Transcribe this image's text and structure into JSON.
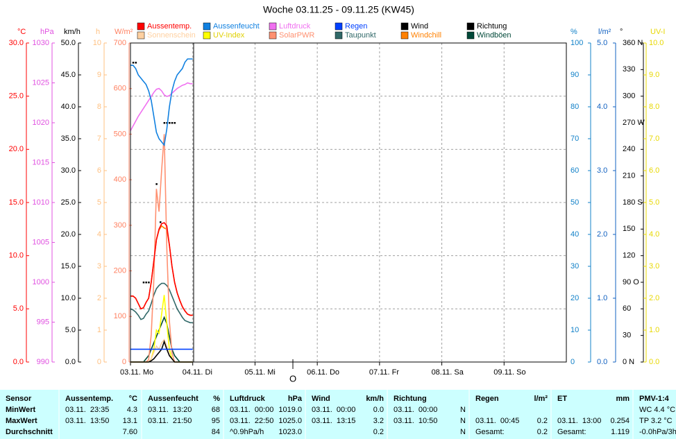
{
  "chart_data": {
    "type": "line",
    "title": "Woche 03.11.25 - 09.11.25 (KW45)",
    "xlim": [
      0,
      168
    ],
    "xticks": [
      {
        "value": 0,
        "label": "03.11. Mo"
      },
      {
        "value": 24,
        "label": "04.11. Di"
      },
      {
        "value": 48,
        "label": "05.11. Mi"
      },
      {
        "value": 72,
        "label": "06.11. Do"
      },
      {
        "value": 96,
        "label": "07.11. Fr"
      },
      {
        "value": 120,
        "label": "08.11. Sa"
      },
      {
        "value": 144,
        "label": "09.11. So"
      }
    ],
    "grid": true,
    "annotation": {
      "text": "O",
      "x": 62.6
    },
    "axes": [
      {
        "label": "°C",
        "color": "#ff0000",
        "side": "left",
        "ylim": [
          0,
          30
        ],
        "yticks": [
          {
            "value": 0,
            "label": "0.0"
          },
          {
            "value": 5,
            "label": "5.0"
          },
          {
            "value": 10,
            "label": "10.0"
          },
          {
            "value": 15,
            "label": "15.0"
          },
          {
            "value": 20,
            "label": "20.0"
          },
          {
            "value": 25,
            "label": "25.0"
          },
          {
            "value": 30,
            "label": "30.0"
          }
        ]
      },
      {
        "label": "hPa",
        "color": "#e050e0",
        "side": "left",
        "ylim": [
          990,
          1030
        ],
        "yticks": [
          990,
          995,
          1000,
          1005,
          1010,
          1015,
          1020,
          1025,
          1030
        ]
      },
      {
        "label": "km/h",
        "color": "#000000",
        "side": "left",
        "ylim": [
          0,
          50
        ],
        "yticks": [
          {
            "value": 0,
            "label": "0.0"
          },
          {
            "value": 5,
            "label": "5.0"
          },
          {
            "value": 10,
            "label": "10.0"
          },
          {
            "value": 15,
            "label": "15.0"
          },
          {
            "value": 20,
            "label": "20.0"
          },
          {
            "value": 25,
            "label": "25.0"
          },
          {
            "value": 30,
            "label": "30.0"
          },
          {
            "value": 35,
            "label": "35.0"
          },
          {
            "value": 40,
            "label": "40.0"
          },
          {
            "value": 45,
            "label": "45.0"
          },
          {
            "value": 50,
            "label": "50.0"
          }
        ]
      },
      {
        "label": "h",
        "color": "#ffc080",
        "side": "left",
        "ylim": [
          0,
          10
        ],
        "yticks": [
          0,
          1,
          2,
          3,
          4,
          5,
          6,
          7,
          8,
          9,
          10
        ]
      },
      {
        "label": "W/m²",
        "color": "#ff8060",
        "side": "left",
        "ylim": [
          0,
          700
        ],
        "yticks": [
          0,
          100,
          200,
          300,
          400,
          500,
          600,
          700
        ]
      },
      {
        "label": "%",
        "color": "#1080c8",
        "side": "right",
        "ylim": [
          0,
          100
        ],
        "yticks": [
          0,
          10,
          20,
          30,
          40,
          50,
          60,
          70,
          80,
          90,
          100
        ]
      },
      {
        "label": "l/m²",
        "color": "#1060c0",
        "side": "right",
        "ylim": [
          0,
          5
        ],
        "yticks": [
          {
            "value": 0,
            "label": "0.0"
          },
          {
            "value": 1,
            "label": "1.0"
          },
          {
            "value": 2,
            "label": "2.0"
          },
          {
            "value": 3,
            "label": "3.0"
          },
          {
            "value": 4,
            "label": "4.0"
          },
          {
            "value": 5,
            "label": "5.0"
          }
        ]
      },
      {
        "label": "°",
        "color": "#000000",
        "side": "right",
        "ylim": [
          0,
          360
        ],
        "yticks": [
          {
            "value": 0,
            "label": "0 N"
          },
          30,
          60,
          {
            "value": 90,
            "label": "90 O"
          },
          120,
          150,
          {
            "value": 180,
            "label": "180 S"
          },
          210,
          240,
          {
            "value": 270,
            "label": "270 W"
          },
          300,
          330,
          {
            "value": 360,
            "label": "360 N"
          }
        ]
      },
      {
        "label": "UV-I",
        "color": "#e8d800",
        "side": "right",
        "ylim": [
          0,
          10
        ],
        "yticks": [
          {
            "value": 0,
            "label": "0.0"
          },
          {
            "value": 1,
            "label": "1.0"
          },
          {
            "value": 2,
            "label": "2.0"
          },
          {
            "value": 3,
            "label": "3.0"
          },
          {
            "value": 4,
            "label": "4.0"
          },
          {
            "value": 5,
            "label": "5.0"
          },
          {
            "value": 6,
            "label": "6.0"
          },
          {
            "value": 7,
            "label": "7.0"
          },
          {
            "value": 8,
            "label": "8.0"
          },
          {
            "value": 9,
            "label": "9.0"
          },
          {
            "value": 10,
            "label": "10.0"
          }
        ]
      }
    ],
    "x": [
      0,
      1,
      2,
      3,
      4,
      5,
      6,
      7,
      8,
      9,
      10,
      11,
      12,
      13,
      14,
      15,
      16,
      17,
      18,
      19,
      20,
      21,
      22,
      23,
      24
    ],
    "series": [
      {
        "name": "Aussentemp.",
        "color": "#ff0000",
        "axis": 0,
        "values": [
          6.2,
          6.2,
          6.0,
          5.5,
          5.0,
          5.1,
          5.6,
          6.0,
          7.5,
          9.5,
          11.5,
          12.5,
          13.0,
          13.1,
          12.8,
          11.0,
          9.0,
          7.5,
          6.5,
          5.8,
          5.2,
          4.8,
          4.5,
          4.4,
          4.4
        ]
      },
      {
        "name": "Aussenfeucht",
        "color": "#1080e0",
        "axis": 5,
        "values": [
          93,
          93,
          92,
          90,
          89,
          88,
          87,
          85,
          82,
          77,
          72,
          70,
          69,
          68,
          73,
          80,
          85,
          88,
          90,
          91,
          92,
          94,
          95,
          95,
          95
        ]
      },
      {
        "name": "Luftdruck",
        "color": "#f070f0",
        "axis": 1,
        "values": [
          1019.0,
          1019.6,
          1020.2,
          1020.8,
          1021.3,
          1021.8,
          1022.3,
          1022.8,
          1023.3,
          1023.8,
          1024.2,
          1024.3,
          1024.0,
          1023.5,
          1023.3,
          1023.4,
          1023.7,
          1024.0,
          1024.3,
          1024.5,
          1024.7,
          1024.8,
          1025.0,
          1024.9,
          1024.9
        ]
      },
      {
        "name": "Regen",
        "color": "#0040ff",
        "axis": 6,
        "values": [
          0.2,
          0.2,
          0.2,
          0.2,
          0.2,
          0.2,
          0.2,
          0.2,
          0.2,
          0.2,
          0.2,
          0.2,
          0.2,
          0.2,
          0.2,
          0.2,
          0.2,
          0.2,
          0.2,
          0.2,
          0.2,
          0.2,
          0.2,
          0.2,
          0.2
        ]
      },
      {
        "name": "Wind",
        "color": "#000000",
        "axis": 2,
        "values": [
          0,
          0,
          0,
          0,
          0,
          0,
          0,
          0,
          0.2,
          0.5,
          1.0,
          1.5,
          2.0,
          3.2,
          2.0,
          1.0,
          0.5,
          0,
          0,
          0,
          0,
          0,
          0,
          0,
          0
        ]
      },
      {
        "name": "Richtung",
        "color": "#000000",
        "axis": 7,
        "type": "scatter",
        "x": [
          1,
          2,
          5,
          6,
          7,
          10,
          11.5,
          13,
          14,
          15,
          16,
          17
        ],
        "values": [
          338,
          338,
          90,
          90,
          90,
          201,
          158,
          270,
          270,
          270,
          270,
          270
        ]
      },
      {
        "name": "Sonnenschein",
        "color": "#ffd0a0",
        "axis": 3,
        "values": [
          0,
          0,
          0,
          0,
          0,
          0,
          0,
          0,
          0.1,
          0.3,
          0.5,
          0.4,
          0.6,
          0.7,
          0.5,
          0.2,
          0.1,
          0,
          0,
          0,
          0,
          0,
          0,
          0,
          0
        ]
      },
      {
        "name": "UV-Index",
        "color": "#ffff00",
        "axis": 8,
        "values": [
          0,
          0,
          0,
          0,
          0,
          0,
          0,
          0,
          0.1,
          0.4,
          1.0,
          0.9,
          1.5,
          2.1,
          1.2,
          0.4,
          0.1,
          0,
          0,
          0,
          0,
          0,
          0,
          0,
          0
        ]
      },
      {
        "name": "SolarPWR",
        "color": "#ff9070",
        "axis": 4,
        "values": [
          0,
          0,
          0,
          0,
          0,
          0,
          0,
          5,
          60,
          180,
          380,
          330,
          420,
          500,
          250,
          90,
          20,
          0,
          0,
          0,
          0,
          0,
          0,
          0,
          0
        ]
      },
      {
        "name": "Taupunkt",
        "color": "#306868",
        "axis": 0,
        "values": [
          5.0,
          4.9,
          4.7,
          4.4,
          4.0,
          4.1,
          4.5,
          4.8,
          5.5,
          6.3,
          6.9,
          7.2,
          7.4,
          7.4,
          7.2,
          6.8,
          6.2,
          5.6,
          5.0,
          4.6,
          4.2,
          3.9,
          3.8,
          3.7,
          3.7
        ]
      },
      {
        "name": "Windchill",
        "color": "#ff8000",
        "axis": 0,
        "values": [
          6.2,
          6.2,
          6.0,
          5.5,
          5.0,
          5.1,
          5.6,
          6.0,
          7.5,
          9.5,
          11.5,
          12.4,
          12.8,
          12.6,
          12.5,
          11.0,
          9.0,
          7.5,
          6.5,
          5.8,
          5.2,
          4.8,
          4.5,
          4.4,
          4.4
        ]
      },
      {
        "name": "Windböen",
        "color": "#004838",
        "axis": 2,
        "values": [
          0,
          0,
          0,
          0,
          0,
          0,
          0.5,
          1,
          2,
          3,
          4,
          5,
          6,
          7,
          6,
          4,
          2,
          1,
          0.5,
          0,
          0,
          0,
          0,
          0,
          0
        ]
      }
    ]
  },
  "table": {
    "row_labels": [
      "Sensor",
      "MinWert",
      "MaxWert",
      "Durchschnitt"
    ],
    "groups": [
      {
        "title": "Aussentemp.",
        "unit": "°C",
        "rows": [
          {
            "time": "03.11.  23:35",
            "value": "4.3"
          },
          {
            "time": "03.11.  13:50",
            "value": "13.1"
          },
          {
            "value": "7.60"
          }
        ]
      },
      {
        "title": "Aussenfeucht",
        "unit": "%",
        "rows": [
          {
            "time": "03.11.  13:20",
            "value": "68"
          },
          {
            "time": "03.11.  21:50",
            "value": "95"
          },
          {
            "value": "84"
          }
        ]
      },
      {
        "title": "Luftdruck",
        "unit": "hPa",
        "rows": [
          {
            "time": "03.11.  00:00",
            "value": "1019.0"
          },
          {
            "time": "03.11.  22:50",
            "value": "1025.0"
          },
          {
            "time": "^0.9hPa/h",
            "value": "1023.0"
          }
        ]
      },
      {
        "title": "Wind",
        "unit": "km/h",
        "rows": [
          {
            "time": "03.11.  00:00",
            "value": "0.0"
          },
          {
            "time": "03.11.  13:15",
            "value": "3.2"
          },
          {
            "value": "0.2"
          }
        ]
      },
      {
        "title": "Richtung",
        "rows": [
          {
            "time": "03.11.  00:00",
            "value": "N"
          },
          {
            "time": "03.11.  10:50",
            "value": "N"
          },
          {
            "value": "N"
          }
        ]
      },
      {
        "title": "Regen",
        "unit": "l/m²",
        "rows": [
          null,
          {
            "time": "03.11.  00:45",
            "value": "0.2"
          },
          {
            "time": "Gesamt:",
            "value": "0.2"
          }
        ]
      },
      {
        "title": "ET",
        "unit": "mm",
        "rows": [
          null,
          {
            "time": "03.11.  13:00",
            "value": "0.254"
          },
          {
            "time": "Gesamt:",
            "value": "1.119"
          }
        ]
      },
      {
        "title": "PMV-1:4",
        "rows": [
          {
            "time": "WC 4.4 °C"
          },
          {
            "time": "TP 3.2 °C"
          },
          {
            "time": "-0.0hPa/3h"
          }
        ]
      }
    ]
  }
}
